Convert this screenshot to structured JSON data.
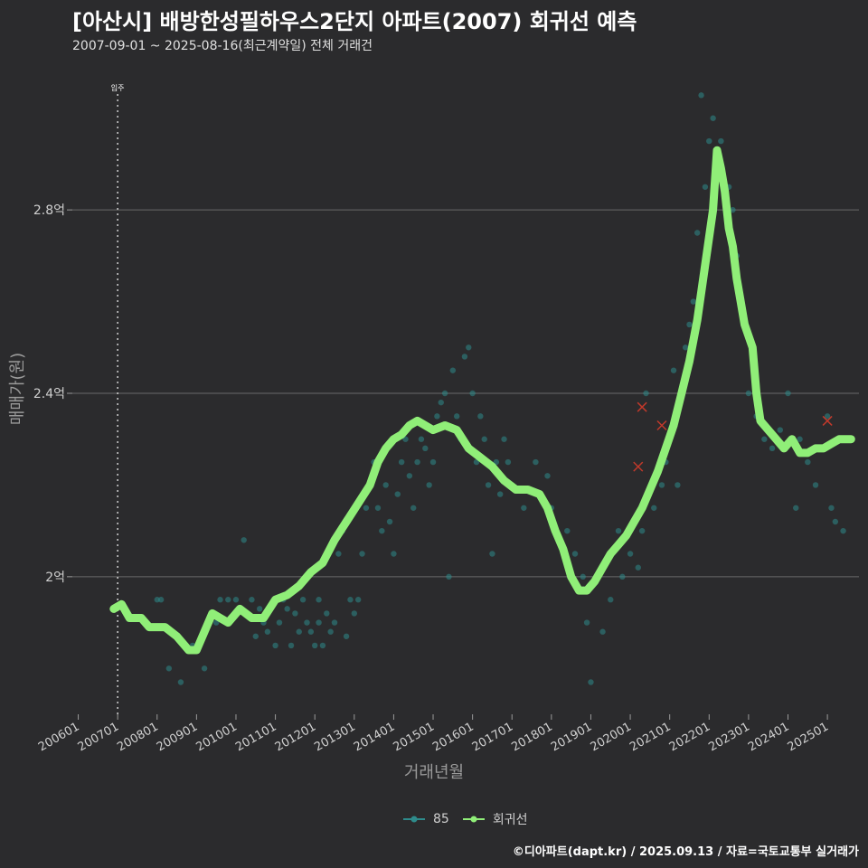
{
  "header": {
    "title": "[아산시] 배방한성필하우스2단지 아파트(2007) 회귀선 예측",
    "subtitle": "2007-09-01 ~ 2025-08-16(최근계약일) 전체 거래건"
  },
  "legend": {
    "items": [
      {
        "label": "85",
        "color": "#2e8b8b"
      },
      {
        "label": "회귀선",
        "color": "#90ee78"
      }
    ]
  },
  "footer": {
    "credit": "©디아파트(dapt.kr) / 2025.09.13 / 자료=국토교통부 실거래가"
  },
  "chart_data": {
    "type": "scatter",
    "title": "[아산시] 배방한성필하우스2단지 아파트(2007) 회귀선 예측",
    "xlabel": "거래년월",
    "ylabel": "매매가(원)",
    "xlim": [
      2005.85,
      2025.8
    ],
    "ylim": [
      1.7,
      3.1
    ],
    "yticks": [
      2.0,
      2.4,
      2.8
    ],
    "ytick_labels": [
      "2억",
      "2.4억",
      "2.8억"
    ],
    "xticks": [
      2006,
      2007,
      2008,
      2009,
      2010,
      2011,
      2012,
      2013,
      2014,
      2015,
      2016,
      2017,
      2018,
      2019,
      2020,
      2021,
      2022,
      2023,
      2024,
      2025
    ],
    "xtick_labels": [
      "200601",
      "200701",
      "200801",
      "200901",
      "201001",
      "201101",
      "201201",
      "201301",
      "201401",
      "201501",
      "201601",
      "201701",
      "201801",
      "201901",
      "202001",
      "202101",
      "202201",
      "202301",
      "202401",
      "202501"
    ],
    "annotation": {
      "x": 2007.0,
      "label": "입주"
    },
    "series": [
      {
        "name": "85",
        "kind": "scatter",
        "points": [
          [
            2008.0,
            1.95
          ],
          [
            2008.1,
            1.95
          ],
          [
            2008.3,
            1.8
          ],
          [
            2008.6,
            1.77
          ],
          [
            2008.9,
            1.85
          ],
          [
            2009.2,
            1.8
          ],
          [
            2009.5,
            1.9
          ],
          [
            2009.6,
            1.95
          ],
          [
            2009.8,
            1.95
          ],
          [
            2010.0,
            1.95
          ],
          [
            2010.1,
            1.93
          ],
          [
            2010.2,
            2.08
          ],
          [
            2010.4,
            1.95
          ],
          [
            2010.5,
            1.87
          ],
          [
            2010.6,
            1.93
          ],
          [
            2010.7,
            1.9
          ],
          [
            2010.8,
            1.88
          ],
          [
            2011.0,
            1.85
          ],
          [
            2011.1,
            1.9
          ],
          [
            2011.2,
            1.95
          ],
          [
            2011.3,
            1.93
          ],
          [
            2011.4,
            1.85
          ],
          [
            2011.5,
            1.92
          ],
          [
            2011.6,
            1.88
          ],
          [
            2011.7,
            1.95
          ],
          [
            2011.8,
            1.9
          ],
          [
            2011.9,
            1.88
          ],
          [
            2012.0,
            1.85
          ],
          [
            2012.1,
            1.9
          ],
          [
            2012.1,
            1.95
          ],
          [
            2012.2,
            1.85
          ],
          [
            2012.3,
            1.92
          ],
          [
            2012.4,
            1.88
          ],
          [
            2012.5,
            1.9
          ],
          [
            2012.6,
            2.05
          ],
          [
            2012.7,
            2.1
          ],
          [
            2012.8,
            1.87
          ],
          [
            2012.9,
            1.95
          ],
          [
            2013.0,
            1.92
          ],
          [
            2013.1,
            1.95
          ],
          [
            2013.2,
            2.05
          ],
          [
            2013.3,
            2.15
          ],
          [
            2013.4,
            2.2
          ],
          [
            2013.5,
            2.25
          ],
          [
            2013.6,
            2.15
          ],
          [
            2013.7,
            2.1
          ],
          [
            2013.8,
            2.2
          ],
          [
            2013.9,
            2.12
          ],
          [
            2014.0,
            2.05
          ],
          [
            2014.1,
            2.18
          ],
          [
            2014.2,
            2.25
          ],
          [
            2014.3,
            2.3
          ],
          [
            2014.4,
            2.22
          ],
          [
            2014.5,
            2.15
          ],
          [
            2014.6,
            2.25
          ],
          [
            2014.7,
            2.3
          ],
          [
            2014.8,
            2.28
          ],
          [
            2014.9,
            2.2
          ],
          [
            2015.0,
            2.25
          ],
          [
            2015.1,
            2.35
          ],
          [
            2015.2,
            2.38
          ],
          [
            2015.3,
            2.4
          ],
          [
            2015.4,
            2.0
          ],
          [
            2015.5,
            2.45
          ],
          [
            2015.6,
            2.35
          ],
          [
            2015.7,
            2.3
          ],
          [
            2015.8,
            2.48
          ],
          [
            2015.9,
            2.5
          ],
          [
            2016.0,
            2.4
          ],
          [
            2016.1,
            2.25
          ],
          [
            2016.2,
            2.35
          ],
          [
            2016.3,
            2.3
          ],
          [
            2016.4,
            2.2
          ],
          [
            2016.5,
            2.05
          ],
          [
            2016.6,
            2.25
          ],
          [
            2016.7,
            2.18
          ],
          [
            2016.8,
            2.3
          ],
          [
            2016.9,
            2.25
          ],
          [
            2017.0,
            2.2
          ],
          [
            2017.3,
            2.15
          ],
          [
            2017.6,
            2.25
          ],
          [
            2017.9,
            2.22
          ],
          [
            2018.0,
            2.15
          ],
          [
            2018.4,
            2.1
          ],
          [
            2018.6,
            2.05
          ],
          [
            2018.8,
            2.0
          ],
          [
            2018.9,
            1.9
          ],
          [
            2019.0,
            1.77
          ],
          [
            2019.3,
            1.88
          ],
          [
            2019.5,
            1.95
          ],
          [
            2019.7,
            2.1
          ],
          [
            2019.8,
            2.0
          ],
          [
            2020.0,
            2.05
          ],
          [
            2020.2,
            2.02
          ],
          [
            2020.3,
            2.1
          ],
          [
            2020.4,
            2.4
          ],
          [
            2020.6,
            2.15
          ],
          [
            2020.8,
            2.2
          ],
          [
            2020.9,
            2.25
          ],
          [
            2021.0,
            2.3
          ],
          [
            2021.1,
            2.45
          ],
          [
            2021.2,
            2.2
          ],
          [
            2021.3,
            2.4
          ],
          [
            2021.4,
            2.5
          ],
          [
            2021.5,
            2.55
          ],
          [
            2021.6,
            2.6
          ],
          [
            2021.7,
            2.75
          ],
          [
            2021.8,
            3.05
          ],
          [
            2021.9,
            2.85
          ],
          [
            2022.0,
            2.95
          ],
          [
            2022.1,
            3.0
          ],
          [
            2022.2,
            2.9
          ],
          [
            2022.3,
            2.95
          ],
          [
            2022.5,
            2.85
          ],
          [
            2022.6,
            2.8
          ],
          [
            2022.7,
            2.7
          ],
          [
            2022.8,
            2.6
          ],
          [
            2022.9,
            2.55
          ],
          [
            2023.0,
            2.4
          ],
          [
            2023.2,
            2.35
          ],
          [
            2023.4,
            2.3
          ],
          [
            2023.6,
            2.28
          ],
          [
            2023.8,
            2.32
          ],
          [
            2024.0,
            2.4
          ],
          [
            2024.2,
            2.15
          ],
          [
            2024.3,
            2.3
          ],
          [
            2024.5,
            2.25
          ],
          [
            2024.7,
            2.2
          ],
          [
            2024.9,
            2.28
          ],
          [
            2025.0,
            2.35
          ],
          [
            2025.1,
            2.15
          ],
          [
            2025.2,
            2.12
          ],
          [
            2025.3,
            2.3
          ],
          [
            2025.4,
            2.1
          ]
        ]
      },
      {
        "name": "회귀선",
        "kind": "line",
        "points": [
          [
            2006.9,
            1.93
          ],
          [
            2007.1,
            1.94
          ],
          [
            2007.3,
            1.91
          ],
          [
            2007.6,
            1.91
          ],
          [
            2007.8,
            1.89
          ],
          [
            2008.2,
            1.89
          ],
          [
            2008.5,
            1.87
          ],
          [
            2008.7,
            1.85
          ],
          [
            2008.8,
            1.84
          ],
          [
            2009.0,
            1.84
          ],
          [
            2009.2,
            1.88
          ],
          [
            2009.4,
            1.92
          ],
          [
            2009.6,
            1.91
          ],
          [
            2009.8,
            1.9
          ],
          [
            2010.1,
            1.93
          ],
          [
            2010.4,
            1.91
          ],
          [
            2010.7,
            1.91
          ],
          [
            2011.0,
            1.95
          ],
          [
            2011.3,
            1.96
          ],
          [
            2011.6,
            1.98
          ],
          [
            2011.9,
            2.01
          ],
          [
            2012.2,
            2.03
          ],
          [
            2012.5,
            2.08
          ],
          [
            2012.8,
            2.12
          ],
          [
            2013.1,
            2.16
          ],
          [
            2013.4,
            2.2
          ],
          [
            2013.6,
            2.25
          ],
          [
            2013.8,
            2.28
          ],
          [
            2014.0,
            2.3
          ],
          [
            2014.2,
            2.31
          ],
          [
            2014.4,
            2.33
          ],
          [
            2014.6,
            2.34
          ],
          [
            2014.8,
            2.33
          ],
          [
            2015.0,
            2.32
          ],
          [
            2015.3,
            2.33
          ],
          [
            2015.6,
            2.32
          ],
          [
            2015.9,
            2.28
          ],
          [
            2016.2,
            2.26
          ],
          [
            2016.5,
            2.24
          ],
          [
            2016.8,
            2.21
          ],
          [
            2017.1,
            2.19
          ],
          [
            2017.4,
            2.19
          ],
          [
            2017.7,
            2.18
          ],
          [
            2017.9,
            2.15
          ],
          [
            2018.1,
            2.1
          ],
          [
            2018.3,
            2.06
          ],
          [
            2018.5,
            2.0
          ],
          [
            2018.7,
            1.97
          ],
          [
            2018.9,
            1.97
          ],
          [
            2019.1,
            1.99
          ],
          [
            2019.3,
            2.02
          ],
          [
            2019.5,
            2.05
          ],
          [
            2019.7,
            2.07
          ],
          [
            2019.9,
            2.09
          ],
          [
            2020.1,
            2.12
          ],
          [
            2020.3,
            2.15
          ],
          [
            2020.5,
            2.19
          ],
          [
            2020.7,
            2.23
          ],
          [
            2020.9,
            2.28
          ],
          [
            2021.1,
            2.33
          ],
          [
            2021.3,
            2.4
          ],
          [
            2021.5,
            2.47
          ],
          [
            2021.7,
            2.56
          ],
          [
            2021.9,
            2.68
          ],
          [
            2022.1,
            2.8
          ],
          [
            2022.2,
            2.93
          ],
          [
            2022.3,
            2.89
          ],
          [
            2022.4,
            2.84
          ],
          [
            2022.5,
            2.76
          ],
          [
            2022.6,
            2.72
          ],
          [
            2022.7,
            2.65
          ],
          [
            2022.8,
            2.6
          ],
          [
            2022.9,
            2.55
          ],
          [
            2023.1,
            2.5
          ],
          [
            2023.2,
            2.4
          ],
          [
            2023.3,
            2.34
          ],
          [
            2023.5,
            2.32
          ],
          [
            2023.7,
            2.3
          ],
          [
            2023.9,
            2.28
          ],
          [
            2024.1,
            2.3
          ],
          [
            2024.3,
            2.27
          ],
          [
            2024.5,
            2.27
          ],
          [
            2024.7,
            2.28
          ],
          [
            2024.9,
            2.28
          ],
          [
            2025.1,
            2.29
          ],
          [
            2025.3,
            2.3
          ],
          [
            2025.5,
            2.3
          ],
          [
            2025.6,
            2.3
          ]
        ]
      },
      {
        "name": "outlier",
        "kind": "marker",
        "points": [
          [
            2020.2,
            2.24
          ],
          [
            2020.3,
            2.37
          ],
          [
            2020.8,
            2.33
          ],
          [
            2025.0,
            2.34
          ]
        ]
      }
    ]
  }
}
